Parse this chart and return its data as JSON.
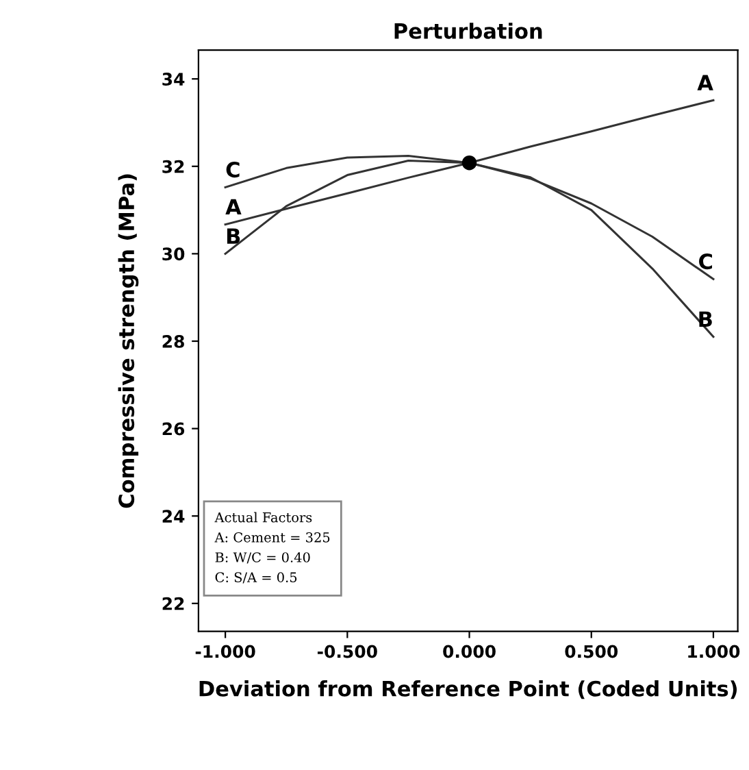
{
  "chart_data": {
    "type": "line",
    "title": "Perturbation",
    "xlabel": "Deviation from Reference Point (Coded Units)",
    "ylabel": "Compressive strength (MPa)",
    "x": [
      -1,
      -0.75,
      -0.5,
      -0.25,
      0,
      0.25,
      0.5,
      0.75,
      1
    ],
    "series": [
      {
        "name": "A",
        "color": "#333333",
        "values": [
          30.67,
          31.03,
          31.38,
          31.74,
          32.08,
          32.45,
          32.8,
          33.16,
          33.51
        ]
      },
      {
        "name": "B",
        "color": "#333333",
        "values": [
          30.0,
          31.09,
          31.8,
          32.13,
          32.08,
          31.75,
          31.0,
          29.66,
          28.1
        ]
      },
      {
        "name": "C",
        "color": "#333333",
        "values": [
          31.52,
          31.96,
          32.2,
          32.24,
          32.08,
          31.72,
          31.15,
          30.39,
          29.42
        ]
      },
      {
        "type": "scatter",
        "color": "#000000",
        "x": [
          0
        ],
        "values": [
          32.08
        ]
      }
    ],
    "xlim": [
      -1.11,
      1.1
    ],
    "ylim": [
      21.36,
      34.66
    ],
    "xticks": [
      {
        "value": -1,
        "label": "-1.000"
      },
      {
        "value": -0.5,
        "label": "-0.500"
      },
      {
        "value": 0,
        "label": "0.000"
      },
      {
        "value": 0.5,
        "label": "0.500"
      },
      {
        "value": 1,
        "label": "1.000"
      }
    ],
    "yticks": [
      22,
      24,
      26,
      28,
      30,
      32,
      34
    ],
    "annotations": [
      "Actual Factors\nA: Cement = 325\nB: W/C = 0.40\nC: S/A = 0.5"
    ]
  }
}
